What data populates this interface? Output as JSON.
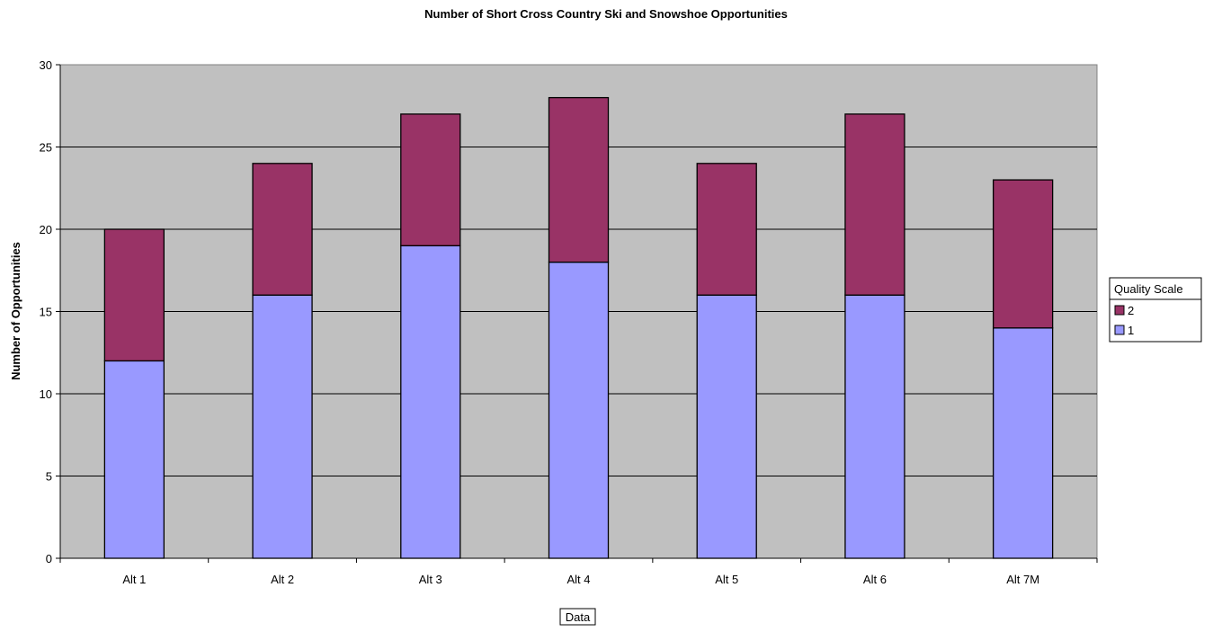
{
  "chart_data": {
    "type": "bar",
    "stacked": true,
    "title": "Number of Short Cross Country Ski and Snowshoe Opportunities",
    "xlabel": "Data",
    "ylabel": "Number of Opportunities",
    "categories": [
      "Alt 1",
      "Alt 2",
      "Alt 3",
      "Alt 4",
      "Alt 5",
      "Alt 6",
      "Alt 7M"
    ],
    "series": [
      {
        "name": "1",
        "values": [
          12,
          16,
          19,
          18,
          16,
          16,
          14
        ],
        "color": "#9999ff"
      },
      {
        "name": "2",
        "values": [
          8,
          8,
          8,
          10,
          8,
          11,
          9
        ],
        "color": "#993366"
      }
    ],
    "ylim": [
      0,
      30
    ],
    "yticks": [
      0,
      5,
      10,
      15,
      20,
      25,
      30
    ],
    "grid": true,
    "plot_background": "#c0c0c0",
    "legend": {
      "title": "Quality Scale",
      "position": "right",
      "order": [
        "2",
        "1"
      ]
    }
  }
}
